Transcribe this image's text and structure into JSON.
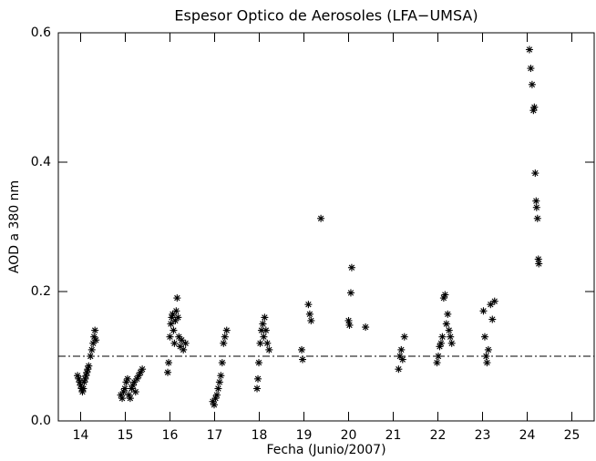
{
  "chart_data": {
    "type": "scatter",
    "title": "Espesor Optico de Aerosoles (LFA−UMSA)",
    "x_label": "Fecha (Junio/2007)",
    "y_label": "AOD a 380 nm",
    "xlim": [
      13.5,
      25.5
    ],
    "ylim": [
      0,
      0.6
    ],
    "xticks": [
      14,
      15,
      16,
      17,
      18,
      19,
      20,
      21,
      22,
      23,
      24,
      25
    ],
    "yticks": [
      {
        "value": 0,
        "label": "0.0"
      },
      0.2,
      0.4,
      0.6
    ],
    "reference_line": 0.1,
    "series": [
      {
        "color": "#000000",
        "x": [
          13.93,
          13.96,
          13.98,
          14.0,
          14.02,
          14.04,
          14.06,
          14.08,
          14.1,
          14.12,
          14.14,
          14.16,
          14.18,
          14.22,
          14.25,
          14.28,
          14.3,
          14.32,
          14.34,
          14.9,
          14.93,
          14.96,
          14.99,
          15.02,
          15.05,
          15.08,
          15.11,
          15.14,
          15.17,
          15.2,
          15.23,
          15.26,
          15.3,
          15.34,
          15.38,
          15.95,
          15.97,
          16.0,
          16.02,
          16.04,
          16.06,
          16.08,
          16.1,
          16.12,
          16.14,
          16.16,
          16.18,
          16.2,
          16.23,
          16.26,
          16.3,
          16.35,
          16.96,
          16.99,
          17.02,
          17.05,
          17.08,
          17.11,
          17.14,
          17.17,
          17.2,
          17.23,
          17.27,
          17.95,
          17.97,
          17.99,
          18.02,
          18.05,
          18.08,
          18.1,
          18.12,
          18.15,
          18.18,
          18.22,
          18.95,
          18.97,
          19.1,
          19.13,
          19.16,
          19.38,
          20.0,
          20.02,
          20.05,
          20.07,
          20.38,
          21.12,
          21.15,
          21.18,
          21.21,
          21.25,
          21.98,
          22.01,
          22.04,
          22.07,
          22.1,
          22.13,
          22.16,
          22.19,
          22.22,
          22.25,
          22.28,
          22.31,
          23.02,
          23.05,
          23.08,
          23.1,
          23.13,
          23.18,
          23.22,
          23.27,
          24.05,
          24.08,
          24.11,
          24.14,
          24.16,
          24.18,
          24.2,
          24.21,
          24.23,
          24.25,
          24.26
        ],
        "values": [
          0.07,
          0.065,
          0.06,
          0.055,
          0.05,
          0.045,
          0.05,
          0.06,
          0.065,
          0.07,
          0.075,
          0.08,
          0.085,
          0.1,
          0.11,
          0.12,
          0.13,
          0.14,
          0.125,
          0.04,
          0.035,
          0.045,
          0.05,
          0.06,
          0.065,
          0.04,
          0.035,
          0.05,
          0.055,
          0.06,
          0.045,
          0.065,
          0.07,
          0.075,
          0.08,
          0.075,
          0.09,
          0.13,
          0.15,
          0.16,
          0.165,
          0.14,
          0.12,
          0.155,
          0.17,
          0.19,
          0.16,
          0.13,
          0.115,
          0.125,
          0.11,
          0.12,
          0.03,
          0.025,
          0.035,
          0.04,
          0.05,
          0.06,
          0.07,
          0.09,
          0.12,
          0.13,
          0.14,
          0.05,
          0.065,
          0.09,
          0.12,
          0.14,
          0.15,
          0.13,
          0.16,
          0.14,
          0.12,
          0.11,
          0.11,
          0.095,
          0.18,
          0.165,
          0.155,
          0.313,
          0.155,
          0.148,
          0.198,
          0.237,
          0.145,
          0.08,
          0.1,
          0.11,
          0.095,
          0.13,
          0.09,
          0.1,
          0.115,
          0.12,
          0.13,
          0.19,
          0.195,
          0.15,
          0.165,
          0.14,
          0.13,
          0.12,
          0.17,
          0.13,
          0.1,
          0.09,
          0.11,
          0.18,
          0.157,
          0.185,
          0.574,
          0.545,
          0.52,
          0.48,
          0.485,
          0.383,
          0.34,
          0.33,
          0.313,
          0.25,
          0.243
        ]
      }
    ]
  }
}
